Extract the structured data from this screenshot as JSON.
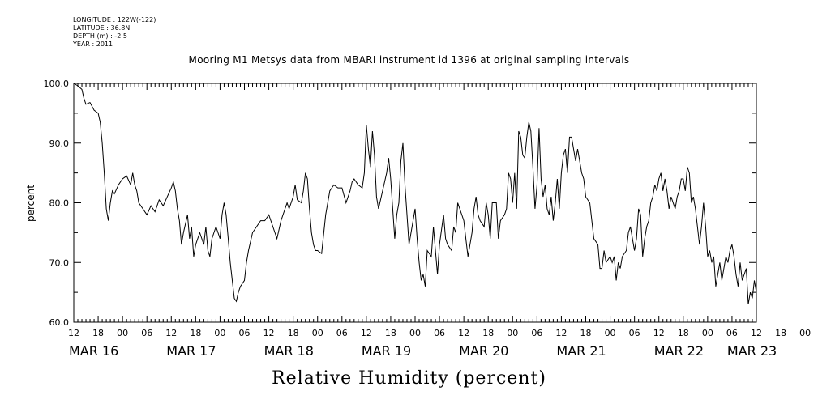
{
  "meta": {
    "longitude": "LONGITUDE : 122W(-122)",
    "latitude": "LATITUDE : 36.8N",
    "depth": "DEPTH (m) : -2.5",
    "year": "YEAR : 2011"
  },
  "chart_data": {
    "type": "line",
    "title": "Mooring M1 Metsys data from MBARI instrument id 1396 at original sampling intervals",
    "xlabel": "Relative Humidity (percent)",
    "ylabel": "percent",
    "ylim": [
      60,
      100
    ],
    "yticks": [
      60,
      70,
      80,
      90,
      100
    ],
    "xlim_hours": [
      0,
      168
    ],
    "x_start": "MAR 16 12:00",
    "x_unit_note": "hours",
    "hour_tick_labels": [
      "12",
      "18",
      "00",
      "06",
      "12",
      "18",
      "00",
      "06",
      "12",
      "18",
      "00",
      "06",
      "12",
      "18",
      "00",
      "06",
      "12",
      "18",
      "00",
      "06",
      "12",
      "18",
      "00",
      "06",
      "12",
      "18",
      "00",
      "06",
      "12",
      "18",
      "00",
      "06",
      "12"
    ],
    "date_labels": [
      {
        "label": "MAR 16",
        "hour": 0
      },
      {
        "label": "MAR 17",
        "hour": 24
      },
      {
        "label": "MAR 18",
        "hour": 48
      },
      {
        "label": "MAR 19",
        "hour": 72
      },
      {
        "label": "MAR 20",
        "hour": 96
      },
      {
        "label": "MAR 21",
        "hour": 120
      },
      {
        "label": "MAR 22",
        "hour": 144
      },
      {
        "label": "MAR 23",
        "hour": 162
      }
    ],
    "grid": false,
    "series": [
      {
        "color": "#000000",
        "points": [
          [
            0,
            100
          ],
          [
            1,
            99.6
          ],
          [
            2,
            99.0
          ],
          [
            2.5,
            97.5
          ],
          [
            3,
            96.5
          ],
          [
            4,
            96.8
          ],
          [
            5,
            95.5
          ],
          [
            6,
            95.0
          ],
          [
            6.5,
            93.5
          ],
          [
            7,
            90
          ],
          [
            7.5,
            85
          ],
          [
            8,
            79
          ],
          [
            8.5,
            77
          ],
          [
            9,
            80
          ],
          [
            9.5,
            82
          ],
          [
            10,
            81.5
          ],
          [
            11,
            83
          ],
          [
            12,
            84
          ],
          [
            13,
            84.5
          ],
          [
            14,
            83
          ],
          [
            14.5,
            85
          ],
          [
            15,
            83
          ],
          [
            15.5,
            82
          ],
          [
            16,
            80
          ],
          [
            17,
            79
          ],
          [
            18,
            78
          ],
          [
            19,
            79.5
          ],
          [
            20,
            78.5
          ],
          [
            21,
            80.5
          ],
          [
            22,
            79.5
          ],
          [
            23,
            81
          ],
          [
            24,
            82.5
          ],
          [
            24.5,
            83.5
          ],
          [
            25,
            82
          ],
          [
            25.5,
            79
          ],
          [
            26,
            77
          ],
          [
            26.5,
            73
          ],
          [
            27,
            75
          ],
          [
            28,
            78
          ],
          [
            28.5,
            74
          ],
          [
            29,
            76
          ],
          [
            29.5,
            71
          ],
          [
            30,
            73
          ],
          [
            31,
            75
          ],
          [
            32,
            73
          ],
          [
            32.5,
            76
          ],
          [
            33,
            72
          ],
          [
            33.5,
            71
          ],
          [
            34,
            74
          ],
          [
            35,
            76
          ],
          [
            36,
            74
          ],
          [
            36.5,
            78
          ],
          [
            37,
            80
          ],
          [
            37.5,
            78
          ],
          [
            38,
            74
          ],
          [
            38.5,
            70
          ],
          [
            39,
            67
          ],
          [
            39.5,
            64
          ],
          [
            40,
            63.5
          ],
          [
            40.5,
            65
          ],
          [
            41,
            66
          ],
          [
            42,
            67
          ],
          [
            42.5,
            70
          ],
          [
            43,
            72
          ],
          [
            44,
            75
          ],
          [
            45,
            76
          ],
          [
            46,
            77
          ],
          [
            47,
            77
          ],
          [
            48,
            78
          ],
          [
            49,
            76
          ],
          [
            49.5,
            75
          ],
          [
            50,
            74
          ],
          [
            51,
            77
          ],
          [
            52,
            79
          ],
          [
            52.5,
            80
          ],
          [
            53,
            79
          ],
          [
            54,
            81
          ],
          [
            54.5,
            83
          ],
          [
            55,
            80.5
          ],
          [
            56,
            80
          ],
          [
            56.5,
            82
          ],
          [
            57,
            85
          ],
          [
            57.5,
            84
          ],
          [
            58,
            79
          ],
          [
            58.5,
            75
          ],
          [
            59,
            73
          ],
          [
            59.5,
            72
          ],
          [
            60,
            72
          ],
          [
            61,
            71.5
          ],
          [
            62,
            78
          ],
          [
            63,
            82
          ],
          [
            64,
            83
          ],
          [
            65,
            82.5
          ],
          [
            66,
            82.5
          ],
          [
            67,
            80
          ],
          [
            68,
            82
          ],
          [
            68.5,
            83.5
          ],
          [
            69,
            84
          ],
          [
            70,
            83
          ],
          [
            71,
            82.5
          ],
          [
            71.5,
            85
          ],
          [
            72,
            93
          ],
          [
            72.5,
            89
          ],
          [
            73,
            86
          ],
          [
            73.5,
            92
          ],
          [
            74,
            88
          ],
          [
            74.5,
            81
          ],
          [
            75,
            79
          ],
          [
            76,
            82
          ],
          [
            77,
            85
          ],
          [
            77.5,
            87.5
          ],
          [
            78,
            84
          ],
          [
            78.5,
            79
          ],
          [
            79,
            74
          ],
          [
            79.5,
            78
          ],
          [
            80,
            80
          ],
          [
            80.5,
            87
          ],
          [
            81,
            90
          ],
          [
            81.5,
            83
          ],
          [
            82,
            78
          ],
          [
            82.5,
            73
          ],
          [
            83,
            75
          ],
          [
            84,
            79
          ],
          [
            84.5,
            74
          ],
          [
            85,
            70
          ],
          [
            85.5,
            67
          ],
          [
            86,
            68
          ],
          [
            86.5,
            66
          ],
          [
            87,
            72
          ],
          [
            88,
            71
          ],
          [
            88.5,
            76
          ],
          [
            89,
            72
          ],
          [
            89.5,
            68
          ],
          [
            90,
            73
          ],
          [
            91,
            78
          ],
          [
            91.5,
            74
          ],
          [
            92,
            73
          ],
          [
            93,
            72
          ],
          [
            93.5,
            76
          ],
          [
            94,
            75
          ],
          [
            94.5,
            80
          ],
          [
            95,
            79
          ],
          [
            96,
            77
          ],
          [
            96.5,
            74
          ],
          [
            97,
            71
          ],
          [
            98,
            75
          ],
          [
            98.5,
            79
          ],
          [
            99,
            81
          ],
          [
            99.5,
            78
          ],
          [
            100,
            77
          ],
          [
            101,
            76
          ],
          [
            101.5,
            80
          ],
          [
            102,
            78
          ],
          [
            102.5,
            74
          ],
          [
            103,
            80
          ],
          [
            104,
            80
          ],
          [
            104.5,
            74
          ],
          [
            105,
            77
          ],
          [
            106,
            78
          ],
          [
            106.5,
            79
          ],
          [
            107,
            85
          ],
          [
            107.5,
            84
          ],
          [
            108,
            80
          ],
          [
            108.5,
            85
          ],
          [
            109,
            79
          ],
          [
            109.5,
            92
          ],
          [
            110,
            91
          ],
          [
            110.5,
            88
          ],
          [
            111,
            87.5
          ],
          [
            111.5,
            91
          ],
          [
            112,
            93.5
          ],
          [
            112.5,
            92
          ],
          [
            113,
            86
          ],
          [
            113.5,
            79
          ],
          [
            114,
            83
          ],
          [
            114.5,
            92.5
          ],
          [
            115,
            84
          ],
          [
            115.5,
            81
          ],
          [
            116,
            83
          ],
          [
            116.5,
            79
          ],
          [
            117,
            78
          ],
          [
            117.5,
            81
          ],
          [
            118,
            77
          ],
          [
            118.5,
            80
          ],
          [
            119,
            84
          ],
          [
            119.5,
            79
          ],
          [
            120,
            85
          ],
          [
            120.5,
            88
          ],
          [
            121,
            89
          ],
          [
            121.5,
            85
          ],
          [
            122,
            91
          ],
          [
            122.5,
            91
          ],
          [
            123,
            89
          ],
          [
            123.5,
            87
          ],
          [
            124,
            89
          ],
          [
            125,
            85
          ],
          [
            125.5,
            84
          ],
          [
            126,
            81
          ],
          [
            127,
            80
          ],
          [
            127.5,
            77
          ],
          [
            128,
            74
          ],
          [
            129,
            73
          ],
          [
            129.5,
            69
          ],
          [
            130,
            69
          ],
          [
            130.5,
            72
          ],
          [
            131,
            70
          ],
          [
            132,
            71
          ],
          [
            132.5,
            70
          ],
          [
            133,
            71
          ],
          [
            133.5,
            67
          ],
          [
            134,
            70
          ],
          [
            134.5,
            69
          ],
          [
            135,
            71
          ],
          [
            136,
            72
          ],
          [
            136.5,
            75
          ],
          [
            137,
            76
          ],
          [
            138,
            72
          ],
          [
            138.5,
            74
          ],
          [
            139,
            79
          ],
          [
            139.5,
            78
          ],
          [
            140,
            71
          ],
          [
            140.5,
            74
          ],
          [
            141,
            76
          ],
          [
            141.5,
            77
          ],
          [
            142,
            80
          ],
          [
            142.5,
            81
          ],
          [
            143,
            83
          ],
          [
            143.5,
            82
          ],
          [
            144,
            84
          ],
          [
            144.5,
            85
          ],
          [
            145,
            82
          ],
          [
            145.5,
            84
          ],
          [
            146,
            82
          ],
          [
            146.5,
            79
          ],
          [
            147,
            81
          ],
          [
            147.5,
            80
          ],
          [
            148,
            79
          ],
          [
            148.5,
            81
          ],
          [
            149,
            82
          ],
          [
            149.5,
            84
          ],
          [
            150,
            84
          ],
          [
            150.5,
            82
          ],
          [
            151,
            86
          ],
          [
            151.5,
            85
          ],
          [
            152,
            80
          ],
          [
            152.5,
            81
          ],
          [
            153,
            79
          ],
          [
            153.5,
            76
          ],
          [
            154,
            73
          ],
          [
            154.5,
            76
          ],
          [
            155,
            80
          ],
          [
            155.5,
            76
          ],
          [
            156,
            71
          ],
          [
            156.5,
            72
          ],
          [
            157,
            70
          ],
          [
            157.5,
            71
          ],
          [
            158,
            66
          ],
          [
            158.5,
            68
          ],
          [
            159,
            70
          ],
          [
            159.5,
            67
          ],
          [
            160,
            69
          ],
          [
            160.5,
            71
          ],
          [
            161,
            70
          ],
          [
            161.5,
            72
          ],
          [
            162,
            73
          ],
          [
            162.5,
            71
          ],
          [
            163,
            68
          ],
          [
            163.5,
            66
          ],
          [
            164,
            70
          ],
          [
            164.5,
            67
          ],
          [
            165,
            68
          ],
          [
            165.5,
            69
          ],
          [
            166,
            63
          ],
          [
            166.5,
            65
          ],
          [
            167,
            64
          ],
          [
            167.5,
            67
          ],
          [
            168,
            65
          ]
        ]
      }
    ]
  }
}
